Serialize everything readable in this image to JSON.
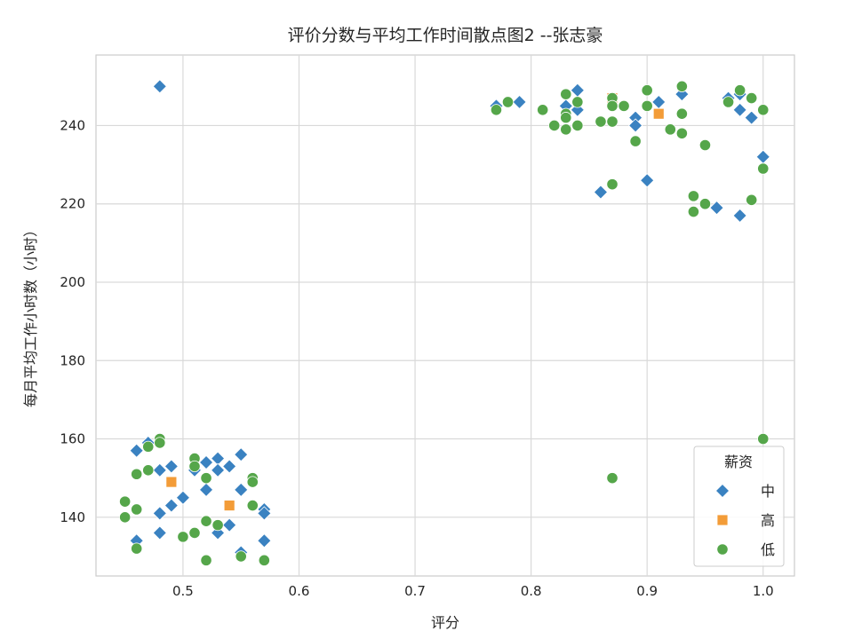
{
  "chart_data": {
    "type": "scatter",
    "title": "评价分数与平均工作时间散点图2 --张志豪",
    "xlabel": "评分",
    "ylabel": "每月平均工作小时数（小时）",
    "xlim": [
      0.425,
      1.027
    ],
    "ylim": [
      125,
      258
    ],
    "xticks": [
      0.5,
      0.6,
      0.7,
      0.8,
      0.9,
      1.0
    ],
    "xtick_labels": [
      "0.5",
      "0.6",
      "0.7",
      "0.8",
      "0.9",
      "1.0"
    ],
    "yticks": [
      140,
      160,
      180,
      200,
      220,
      240
    ],
    "ytick_labels": [
      "140",
      "160",
      "180",
      "200",
      "220",
      "240"
    ],
    "grid": true,
    "legend": {
      "title": "薪资",
      "placement": "lower-right"
    },
    "series": [
      {
        "name": "中",
        "marker": "diamond",
        "color": "#3a82c1",
        "points": [
          [
            0.48,
            250
          ],
          [
            0.46,
            157
          ],
          [
            0.47,
            159
          ],
          [
            0.48,
            152
          ],
          [
            0.49,
            153
          ],
          [
            0.51,
            152
          ],
          [
            0.52,
            154
          ],
          [
            0.53,
            155
          ],
          [
            0.53,
            152
          ],
          [
            0.54,
            153
          ],
          [
            0.55,
            156
          ],
          [
            0.52,
            147
          ],
          [
            0.55,
            147
          ],
          [
            0.57,
            142
          ],
          [
            0.57,
            141
          ],
          [
            0.48,
            141
          ],
          [
            0.49,
            143
          ],
          [
            0.5,
            145
          ],
          [
            0.46,
            134
          ],
          [
            0.48,
            136
          ],
          [
            0.53,
            136
          ],
          [
            0.54,
            138
          ],
          [
            0.55,
            131
          ],
          [
            0.57,
            134
          ],
          [
            0.77,
            245
          ],
          [
            0.79,
            246
          ],
          [
            0.83,
            245
          ],
          [
            0.84,
            249
          ],
          [
            0.84,
            244
          ],
          [
            0.86,
            223
          ],
          [
            0.89,
            242
          ],
          [
            0.89,
            240
          ],
          [
            0.9,
            226
          ],
          [
            0.91,
            246
          ],
          [
            0.93,
            248
          ],
          [
            0.96,
            219
          ],
          [
            0.97,
            247
          ],
          [
            0.98,
            248
          ],
          [
            0.98,
            244
          ],
          [
            0.98,
            217
          ],
          [
            0.99,
            242
          ],
          [
            1.0,
            232
          ]
        ]
      },
      {
        "name": "高",
        "marker": "square",
        "color": "#f39c38",
        "points": [
          [
            0.49,
            149
          ],
          [
            0.54,
            143
          ],
          [
            0.87,
            247
          ],
          [
            0.91,
            243
          ]
        ]
      },
      {
        "name": "低",
        "marker": "circle",
        "color": "#55a64a",
        "points": [
          [
            0.45,
            144
          ],
          [
            0.45,
            140
          ],
          [
            0.46,
            142
          ],
          [
            0.46,
            151
          ],
          [
            0.46,
            132
          ],
          [
            0.47,
            158
          ],
          [
            0.47,
            152
          ],
          [
            0.48,
            160
          ],
          [
            0.48,
            159
          ],
          [
            0.5,
            135
          ],
          [
            0.51,
            155
          ],
          [
            0.51,
            153
          ],
          [
            0.51,
            136
          ],
          [
            0.52,
            150
          ],
          [
            0.52,
            139
          ],
          [
            0.52,
            129
          ],
          [
            0.53,
            138
          ],
          [
            0.55,
            130
          ],
          [
            0.56,
            150
          ],
          [
            0.56,
            149
          ],
          [
            0.56,
            143
          ],
          [
            0.57,
            129
          ],
          [
            0.77,
            244
          ],
          [
            0.78,
            246
          ],
          [
            0.81,
            244
          ],
          [
            0.82,
            240
          ],
          [
            0.83,
            248
          ],
          [
            0.83,
            243
          ],
          [
            0.83,
            242
          ],
          [
            0.83,
            239
          ],
          [
            0.84,
            246
          ],
          [
            0.84,
            240
          ],
          [
            0.86,
            241
          ],
          [
            0.87,
            247
          ],
          [
            0.87,
            245
          ],
          [
            0.87,
            241
          ],
          [
            0.87,
            225
          ],
          [
            0.87,
            150
          ],
          [
            0.88,
            245
          ],
          [
            0.89,
            236
          ],
          [
            0.9,
            249
          ],
          [
            0.9,
            245
          ],
          [
            0.92,
            239
          ],
          [
            0.93,
            250
          ],
          [
            0.93,
            243
          ],
          [
            0.93,
            238
          ],
          [
            0.94,
            222
          ],
          [
            0.94,
            218
          ],
          [
            0.95,
            235
          ],
          [
            0.95,
            220
          ],
          [
            0.97,
            246
          ],
          [
            0.98,
            249
          ],
          [
            0.99,
            247
          ],
          [
            0.99,
            221
          ],
          [
            1.0,
            244
          ],
          [
            1.0,
            229
          ],
          [
            1.0,
            160
          ]
        ]
      }
    ]
  }
}
